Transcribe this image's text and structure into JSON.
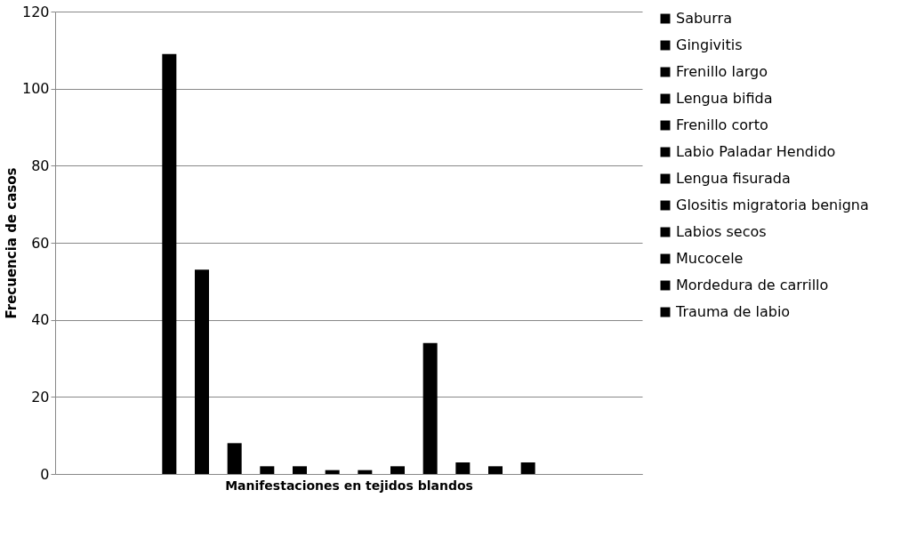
{
  "chart_data": {
    "type": "bar",
    "xlabel": "Manifestaciones en tejidos blandos",
    "ylabel": "Frecuencia de casos",
    "categories": [
      null
    ],
    "series": [
      {
        "name": "Saburra",
        "color": "#000000",
        "values": [
          109
        ]
      },
      {
        "name": "Gingivitis",
        "color": "#000000",
        "values": [
          53
        ]
      },
      {
        "name": "Frenillo largo",
        "color": "#000000",
        "values": [
          8
        ]
      },
      {
        "name": "Lengua bifida",
        "color": "#000000",
        "values": [
          2
        ]
      },
      {
        "name": "Frenillo corto",
        "color": "#000000",
        "values": [
          2
        ]
      },
      {
        "name": "Labio Paladar Hendido",
        "color": "#000000",
        "values": [
          1
        ]
      },
      {
        "name": "Lengua fisurada",
        "color": "#000000",
        "values": [
          1
        ]
      },
      {
        "name": "Glositis migratoria benigna",
        "color": "#000000",
        "values": [
          2
        ]
      },
      {
        "name": "Labios secos",
        "color": "#000000",
        "values": [
          34
        ]
      },
      {
        "name": "Mucocele",
        "color": "#000000",
        "values": [
          3
        ]
      },
      {
        "name": "Mordedura de carrillo",
        "color": "#000000",
        "values": [
          2
        ]
      },
      {
        "name": "Trauma de labio",
        "color": "#000000",
        "values": [
          3
        ]
      }
    ],
    "ylim": [
      0,
      120
    ],
    "yticks": [
      0,
      20,
      40,
      60,
      80,
      100,
      120
    ],
    "grid": "y",
    "legend": "right"
  }
}
